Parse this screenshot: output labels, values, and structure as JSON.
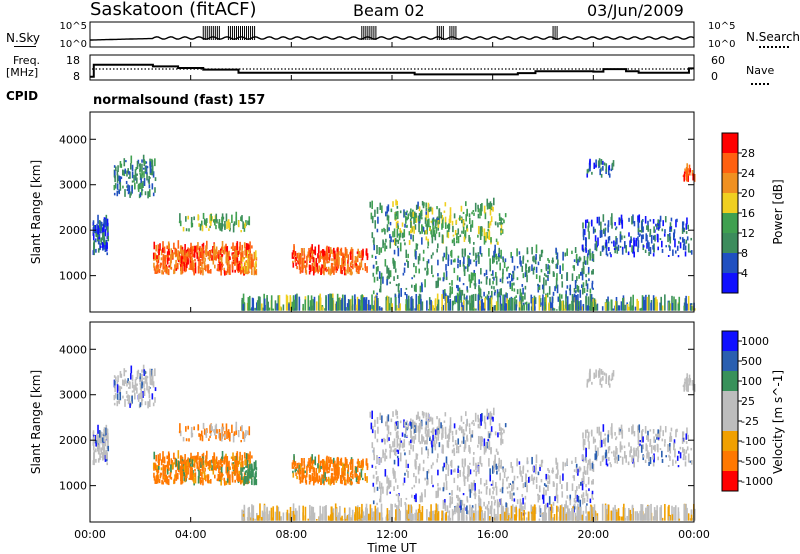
{
  "header": {
    "station": "Saskatoon (fitACF)",
    "beam": "Beam 02",
    "date": "03/Jun/2009"
  },
  "left_labels": {
    "nsky": "N.Sky",
    "freq": "Freq.",
    "freq_unit": "[MHz]",
    "cpid": "CPID"
  },
  "right_labels": {
    "nsearch": "N.Search",
    "nave": "Nave"
  },
  "cpid_text": "normalsound (fast) 157",
  "colors": {
    "power": [
      "#1010ff",
      "#2050c0",
      "#3c8c5c",
      "#40a050",
      "#f0d020",
      "#f09020",
      "#ff6010",
      "#ff0000"
    ],
    "velocity": [
      "#1010ff",
      "#2a5fb0",
      "#38915a",
      "#bdbdbd",
      "#bdbdbd",
      "#f0a000",
      "#ff7800",
      "#ff0000"
    ],
    "ground_scatter": "#bdbdbd"
  },
  "chart_data": [
    {
      "type": "line",
      "name": "noise panel",
      "y_left_ticks": [
        "10^5",
        "10^0"
      ],
      "y_right_ticks": [
        "10^5",
        "10^0"
      ],
      "series": [
        {
          "name": "N.Sky",
          "style": "solid"
        },
        {
          "name": "N.Search",
          "style": "dotted"
        }
      ]
    },
    {
      "type": "line",
      "name": "frequency panel",
      "y_left_ticks": [
        18,
        8
      ],
      "y_right_ticks": [
        60,
        0
      ],
      "series": [
        {
          "name": "Freq.",
          "unit": "MHz",
          "style": "solid",
          "x": [
            0,
            0.15,
            1.3,
            2.5,
            3.5,
            4.5,
            5.9,
            12.9,
            17.0,
            17.7,
            20.0,
            20.4,
            21.3,
            21.8,
            23.8,
            24
          ],
          "y": [
            10,
            17.5,
            17.5,
            16.5,
            15.5,
            14.5,
            12.5,
            11.5,
            12.3,
            13.5,
            13.2,
            14.8,
            13.5,
            12.5,
            15.3,
            15.3
          ]
        },
        {
          "name": "Nave",
          "style": "dotted",
          "y": 33
        }
      ]
    },
    {
      "type": "heatmap",
      "name": "power",
      "ylabel": "Slant Range [km]",
      "y_ticks": [
        1000,
        2000,
        3000,
        4000
      ],
      "ylim": [
        200,
        4600
      ],
      "xlim": [
        0,
        24
      ],
      "colorbar_label": "Power [dB]",
      "colorbar_ticks": [
        4,
        8,
        12,
        16,
        20,
        24,
        28
      ],
      "colorbar_range": [
        0,
        30
      ]
    },
    {
      "type": "heatmap",
      "name": "velocity",
      "ylabel": "Slant Range [km]",
      "y_ticks": [
        1000,
        2000,
        3000,
        4000
      ],
      "ylim": [
        200,
        4600
      ],
      "xlim": [
        0,
        24
      ],
      "colorbar_label": "Velocity [m s^-1]",
      "colorbar_ticks": [
        "1000",
        "500",
        "100",
        "25",
        "-25",
        "-100",
        "-500",
        "-1000"
      ]
    }
  ],
  "x_axis": {
    "tick_labels": [
      "00:00",
      "04:00",
      "08:00",
      "12:00",
      "16:00",
      "20:00",
      "00:00"
    ],
    "label": "Time UT"
  }
}
